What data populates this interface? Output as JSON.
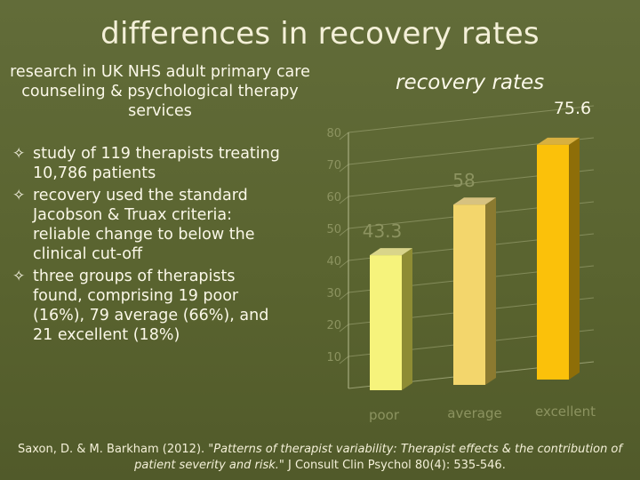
{
  "slide": {
    "title": "differences in recovery rates",
    "subtitle": "research in UK NHS adult primary care counseling & psychological therapy services",
    "bullets": [
      "study of 119 therapists treating 10,786 patients",
      "recovery used the standard Jacobson & Truax criteria: reliable change to below the clinical cut-off",
      "three groups of therapists found, comprising 19 poor (16%), 79 average (66%), and 21 excellent (18%)"
    ],
    "bullet_glyph": "✧",
    "citation_authors": "Saxon, D. & M. Barkham (2012). ",
    "citation_title": "\"Patterns of therapist variability: Therapist effects & the contribution of patient severity and risk.\"",
    "citation_journal": " J Consult Clin Psychol 80(4): 535-546."
  },
  "chart_data": {
    "type": "bar",
    "title": "recovery rates",
    "categories": [
      "poor",
      "average",
      "excellent"
    ],
    "values": [
      43.3,
      58,
      75.6
    ],
    "data_labels": [
      "43.3",
      "58",
      "75.6"
    ],
    "ylim": [
      0,
      80
    ],
    "y_ticks": [
      10,
      20,
      30,
      40,
      50,
      60,
      70,
      80
    ],
    "grid": true,
    "colors": {
      "bar_fronts": [
        "#f6f37c",
        "#f3d66c",
        "#fbc10a"
      ],
      "bar_sides": [
        "#8e8c34",
        "#8b7a30",
        "#8e6e08"
      ],
      "bar_tops": [
        "#d9d58a",
        "#d7c280",
        "#d8b040"
      ],
      "faint_label": "#8c9360",
      "bright_label": "#fbf8e8"
    }
  }
}
